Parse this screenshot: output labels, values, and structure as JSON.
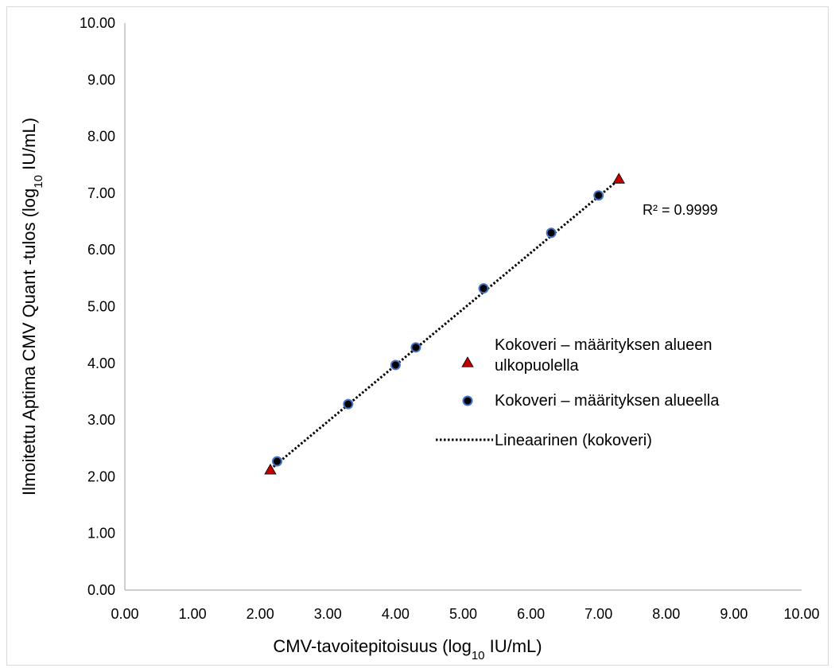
{
  "chart_data": {
    "type": "scatter",
    "xlabel": {
      "prefix": "CMV-tavoitepitoisuus (log",
      "sub": "10",
      "suffix": " IU/mL)"
    },
    "ylabel": {
      "prefix": "Ilmoitettu Aptima CMV Quant -tulos (log",
      "sub": "10",
      "suffix": " IU/mL)"
    },
    "xlim": [
      0,
      10
    ],
    "ylim": [
      0,
      10
    ],
    "x_ticks": [
      "0.00",
      "1.00",
      "2.00",
      "3.00",
      "4.00",
      "5.00",
      "6.00",
      "7.00",
      "8.00",
      "9.00",
      "10.00"
    ],
    "y_ticks": [
      "0.00",
      "1.00",
      "2.00",
      "3.00",
      "4.00",
      "5.00",
      "6.00",
      "7.00",
      "8.00",
      "9.00",
      "10.00"
    ],
    "grid": false,
    "series": [
      {
        "name": "Kokoveri – määrityksen alueen ulkopuolella",
        "legend_lines": [
          "Kokoveri – määrityksen alueen",
          "ulkopuolella"
        ],
        "marker": "triangle",
        "color": "#c00000",
        "points": [
          [
            2.15,
            2.12
          ],
          [
            7.3,
            7.25
          ]
        ]
      },
      {
        "name": "Kokoveri – määrityksen alueella",
        "legend_lines": [
          "Kokoveri – määrityksen alueella"
        ],
        "marker": "circle",
        "color": "#000000",
        "edge_color": "#4472c4",
        "points": [
          [
            2.25,
            2.27
          ],
          [
            3.3,
            3.28
          ],
          [
            4.0,
            3.97
          ],
          [
            4.3,
            4.28
          ],
          [
            5.3,
            5.32
          ],
          [
            6.3,
            6.3
          ],
          [
            7.0,
            6.96
          ]
        ]
      }
    ],
    "trendline": {
      "name": "Lineaarinen (kokoveri)",
      "style": "dotted",
      "color": "#000000",
      "from": [
        2.15,
        2.13
      ],
      "to": [
        7.3,
        7.24
      ]
    },
    "annotations": [
      {
        "text": "R² = 0.9999"
      }
    ],
    "legend_position": "right-middle"
  }
}
